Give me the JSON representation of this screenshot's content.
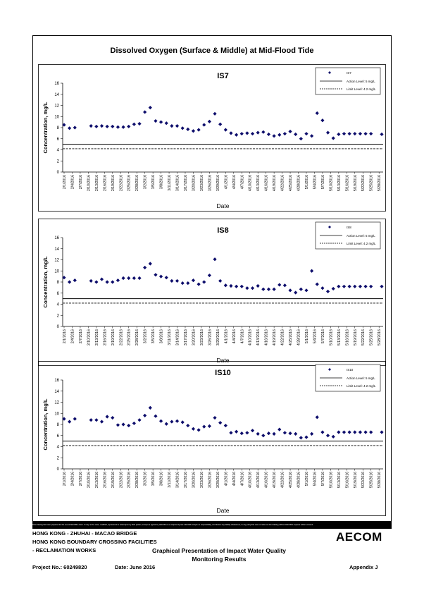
{
  "page_title": "Dissolved Oxygen (Surface & Middle) at Mid-Flood Tide",
  "footer": {
    "disclaimer": "This drawing has been prepared for the use of AECOM's client. It may not be used, modified, reproduced or relied upon by third parties, except as agreed by AECOM or as required by law. AECOM accepts no responsibility, and denies any liability whatsoever, to any party that uses or relies on this drawing without AECOM's express written consent.",
    "line1": "HONG KONG - ZHUHAI - MACAO BRIDGE",
    "line2": "HONG KONG BOUNDARY CROSSING FACILITIES",
    "line3": "- RECLAMATION WORKS",
    "caption1": "Graphical Presentation of Impact Water Quality",
    "caption2": "Monitoring Results",
    "project": "Project No.: 60249820",
    "date": "Date: June 2016",
    "appendix": "Appendix J",
    "logo": "AECOM"
  },
  "colors": {
    "marker": "#0d0d6b",
    "line": "#000000"
  },
  "chart_data": [
    {
      "type": "scatter",
      "title": "IS7",
      "xlabel": "Date",
      "ylabel": "Concentration, mg/L",
      "ylim": [
        0,
        16
      ],
      "yticks": [
        0,
        2,
        4,
        6,
        8,
        10,
        12,
        14,
        16
      ],
      "xticks": [
        "2/1/2016",
        "2/4/2016",
        "2/7/2016",
        "2/10/2016",
        "2/13/2016",
        "2/16/2016",
        "2/19/2016",
        "2/22/2016",
        "2/25/2016",
        "2/28/2016",
        "3/2/2016",
        "3/5/2016",
        "3/8/2016",
        "3/11/2016",
        "3/14/2016",
        "3/17/2016",
        "3/20/2016",
        "3/23/2016",
        "3/26/2016",
        "3/29/2016",
        "4/1/2016",
        "4/4/2016",
        "4/7/2016",
        "4/10/2016",
        "4/13/2016",
        "4/16/2016",
        "4/19/2016",
        "4/22/2016",
        "4/25/2016",
        "4/28/2016",
        "5/1/2016",
        "5/4/2016",
        "5/7/2016",
        "5/10/2016",
        "5/13/2016",
        "5/16/2016",
        "5/19/2016",
        "5/22/2016",
        "5/25/2016",
        "5/28/2016"
      ],
      "legend": [
        "IS7",
        "Action Level: 5 mg/L",
        "Limit Level: 4.2 mg/L"
      ],
      "action_level": 5,
      "limit_level": 4.2,
      "x": [
        0,
        1,
        2,
        5,
        6,
        7,
        8,
        9,
        10,
        11,
        12,
        13,
        14,
        15,
        16,
        17,
        18,
        19,
        20,
        21,
        22,
        23,
        24,
        25,
        26,
        27,
        28,
        29,
        30,
        31,
        32,
        33,
        34,
        35,
        36,
        37,
        38,
        39,
        40,
        41,
        42,
        43,
        44,
        45,
        46,
        47,
        48,
        49,
        50,
        51,
        52,
        53,
        54,
        55,
        56,
        57,
        59
      ],
      "y": [
        8.5,
        7.9,
        8.0,
        8.3,
        8.2,
        8.3,
        8.2,
        8.2,
        8.1,
        8.1,
        8.2,
        8.6,
        8.7,
        10.8,
        11.6,
        9.2,
        9.0,
        8.8,
        8.3,
        8.3,
        7.9,
        7.7,
        7.4,
        7.6,
        8.5,
        9.1,
        10.5,
        8.6,
        7.6,
        7.0,
        6.7,
        6.9,
        7.0,
        6.9,
        7.1,
        7.2,
        6.8,
        6.5,
        6.7,
        6.9,
        7.3,
        6.8,
        6.0,
        6.9,
        6.5,
        10.6,
        9.3,
        7.1,
        6.1,
        6.8,
        6.9,
        6.9,
        6.9,
        6.9,
        6.9,
        6.9,
        6.8
      ]
    },
    {
      "type": "scatter",
      "title": "IS8",
      "xlabel": "Date",
      "ylabel": "Concentration, mg/L",
      "ylim": [
        0,
        16
      ],
      "yticks": [
        0,
        2,
        4,
        6,
        8,
        10,
        12,
        14,
        16
      ],
      "xticks": [
        "2/1/2016",
        "2/4/2016",
        "2/7/2016",
        "2/10/2016",
        "2/13/2016",
        "2/16/2016",
        "2/19/2016",
        "2/22/2016",
        "2/25/2016",
        "2/28/2016",
        "3/2/2016",
        "3/5/2016",
        "3/8/2016",
        "3/11/2016",
        "3/14/2016",
        "3/17/2016",
        "3/20/2016",
        "3/23/2016",
        "3/26/2016",
        "3/29/2016",
        "4/1/2016",
        "4/4/2016",
        "4/7/2016",
        "4/10/2016",
        "4/13/2016",
        "4/16/2016",
        "4/19/2016",
        "4/22/2016",
        "4/25/2016",
        "4/28/2016",
        "5/1/2016",
        "5/4/2016",
        "5/7/2016",
        "5/10/2016",
        "5/13/2016",
        "5/16/2016",
        "5/19/2016",
        "5/22/2016",
        "5/25/2016",
        "5/28/2016"
      ],
      "legend": [
        "IS8",
        "Action Level: 5 mg/L",
        "Limit Level: 4.2 mg/L"
      ],
      "action_level": 5,
      "limit_level": 4.2,
      "x": [
        0,
        1,
        2,
        5,
        6,
        7,
        8,
        9,
        10,
        11,
        12,
        13,
        14,
        15,
        16,
        17,
        18,
        19,
        20,
        21,
        22,
        23,
        24,
        25,
        26,
        27,
        28,
        29,
        30,
        31,
        32,
        33,
        34,
        35,
        36,
        37,
        38,
        39,
        40,
        41,
        42,
        43,
        44,
        45,
        46,
        47,
        48,
        49,
        50,
        51,
        52,
        53,
        54,
        55,
        56,
        57,
        59
      ],
      "y": [
        8.8,
        8.0,
        8.3,
        8.2,
        8.0,
        8.5,
        8.0,
        8.0,
        8.3,
        8.7,
        8.7,
        8.7,
        8.7,
        10.6,
        11.3,
        9.3,
        9.0,
        8.8,
        8.2,
        8.2,
        7.8,
        7.8,
        8.3,
        7.6,
        8.0,
        9.2,
        12.1,
        8.2,
        7.4,
        7.3,
        7.2,
        7.2,
        6.9,
        6.9,
        7.3,
        6.7,
        6.7,
        6.7,
        7.5,
        7.4,
        6.5,
        6.1,
        6.7,
        6.5,
        10.0,
        7.6,
        6.9,
        6.3,
        6.8,
        7.2,
        7.2,
        7.2,
        7.2,
        7.2,
        7.2,
        7.2,
        7.2
      ]
    },
    {
      "type": "scatter",
      "title": "IS10",
      "xlabel": "Date",
      "ylabel": "Concentration, mg/L",
      "ylim": [
        0,
        16
      ],
      "yticks": [
        0,
        2,
        4,
        6,
        8,
        10,
        12,
        14,
        16
      ],
      "xticks": [
        "2/1/2016",
        "2/4/2016",
        "2/7/2016",
        "2/10/2016",
        "2/13/2016",
        "2/16/2016",
        "2/19/2016",
        "2/22/2016",
        "2/25/2016",
        "2/28/2016",
        "3/2/2016",
        "3/5/2016",
        "3/8/2016",
        "3/11/2016",
        "3/14/2016",
        "3/17/2016",
        "3/20/2016",
        "3/23/2016",
        "3/26/2016",
        "3/29/2016",
        "4/1/2016",
        "4/4/2016",
        "4/7/2016",
        "4/10/2016",
        "4/13/2016",
        "4/16/2016",
        "4/19/2016",
        "4/22/2016",
        "4/25/2016",
        "4/28/2016",
        "5/1/2016",
        "5/4/2016",
        "5/7/2016",
        "5/10/2016",
        "5/13/2016",
        "5/16/2016",
        "5/19/2016",
        "5/22/2016",
        "5/25/2016",
        "5/28/2016"
      ],
      "legend": [
        "IS10",
        "Action Level: 5 mg/L",
        "Limit Level: 4.2 mg/L"
      ],
      "action_level": 5,
      "limit_level": 4.2,
      "x": [
        0,
        1,
        2,
        5,
        6,
        7,
        8,
        9,
        10,
        11,
        12,
        13,
        14,
        15,
        16,
        17,
        18,
        19,
        20,
        21,
        22,
        23,
        24,
        25,
        26,
        27,
        28,
        29,
        30,
        31,
        32,
        33,
        34,
        35,
        36,
        37,
        38,
        39,
        40,
        41,
        42,
        43,
        44,
        45,
        46,
        47,
        48,
        49,
        50,
        51,
        52,
        53,
        54,
        55,
        56,
        57,
        59
      ],
      "y": [
        9.0,
        8.5,
        9.0,
        8.8,
        8.8,
        8.5,
        9.4,
        9.2,
        7.9,
        8.0,
        7.8,
        8.2,
        8.8,
        9.6,
        11.0,
        9.5,
        8.6,
        8.1,
        8.5,
        8.6,
        8.4,
        7.8,
        7.2,
        7.0,
        7.6,
        7.7,
        9.2,
        8.3,
        7.8,
        6.5,
        6.7,
        6.4,
        6.5,
        6.9,
        6.3,
        6.0,
        6.4,
        6.3,
        7.1,
        6.5,
        6.4,
        6.3,
        5.6,
        5.7,
        6.3,
        9.3,
        6.6,
        6.0,
        5.8,
        6.6,
        6.6,
        6.6,
        6.6,
        6.6,
        6.6,
        6.6,
        6.6
      ]
    }
  ]
}
